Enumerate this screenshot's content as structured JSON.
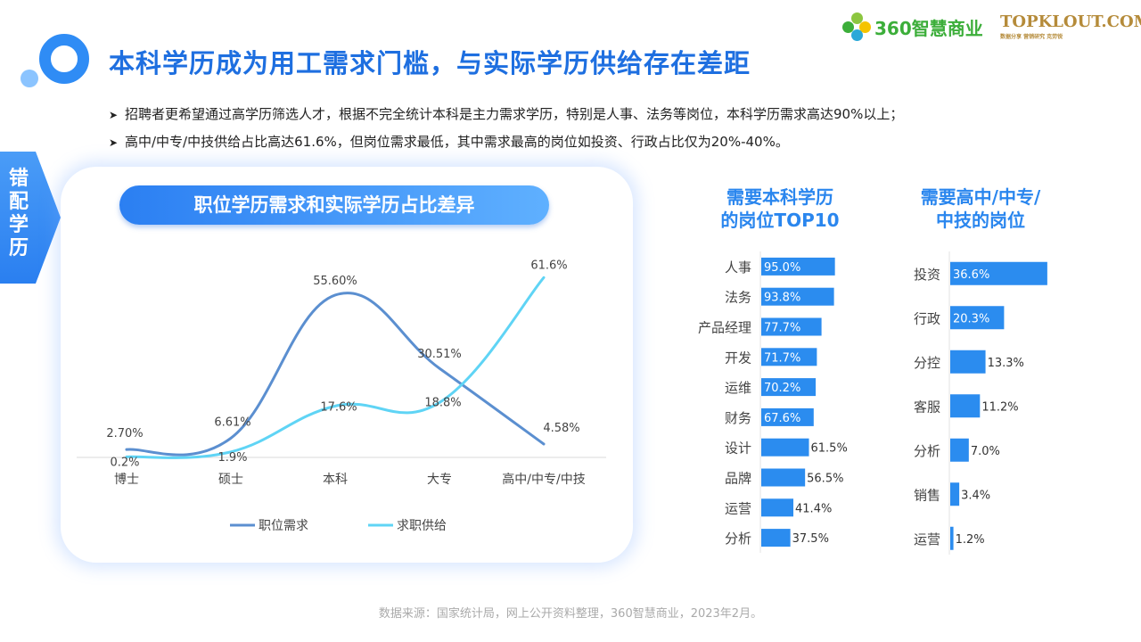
{
  "page": {
    "title": "本科学历成为用工需求门槛，与实际学历供给存在差距",
    "bullets": [
      "招聘者更希望通过高学历筛选人才，根据不完全统计本科是主力需求学历，特别是人事、法务等岗位，本科学历需求高达90%以上；",
      "高中/中专/中技供给占比高达61.6%，但岗位需求最低，其中需求最高的岗位如投资、行政占比仅为20%-40%。"
    ],
    "side_tab": [
      "错",
      "配",
      "学",
      "历"
    ],
    "brand_360": "360智慧商业",
    "brand_topklout": "TOPKLOUT.COM",
    "brand_topklout_sub": "数据分享 营销研究 克劳锐",
    "source": "数据来源：国家统计局，网上公开资料整理，360智慧商业，2023年2月。",
    "colors": {
      "accent": "#1e6fe0",
      "demand": "#5b8fd0",
      "supply": "#5fd4f5",
      "bar": "#2b8cef"
    }
  },
  "chart_data": [
    {
      "type": "line",
      "title": "职位学历需求和实际学历占比差异",
      "categories": [
        "博士",
        "硕士",
        "本科",
        "大专",
        "高中/中专/中技"
      ],
      "series": [
        {
          "name": "职位需求",
          "values": [
            2.7,
            6.61,
            55.6,
            30.51,
            4.58
          ],
          "labels": [
            "2.70%",
            "6.61%",
            "55.60%",
            "30.51%",
            "4.58%"
          ],
          "color": "#5b8fd0"
        },
        {
          "name": "求职供给",
          "values": [
            0.2,
            1.9,
            17.6,
            18.8,
            61.6
          ],
          "labels": [
            "0.2%",
            "1.9%",
            "17.6%",
            "18.8%",
            "61.6%"
          ],
          "color": "#5fd4f5"
        }
      ],
      "ylim": [
        0,
        62
      ],
      "legend": "bottom"
    },
    {
      "type": "bar",
      "orientation": "horizontal",
      "title": "需要本科学历的岗位TOP10",
      "title_lines": [
        "需要本科学历",
        "的岗位TOP10"
      ],
      "categories": [
        "人事",
        "法务",
        "产品经理",
        "开发",
        "运维",
        "财务",
        "设计",
        "品牌",
        "运营",
        "分析"
      ],
      "values": [
        95.0,
        93.8,
        77.7,
        71.7,
        70.2,
        67.6,
        61.5,
        56.5,
        41.4,
        37.5
      ],
      "labels": [
        "95.0%",
        "93.8%",
        "77.7%",
        "71.7%",
        "70.2%",
        "67.6%",
        "61.5%",
        "56.5%",
        "41.4%",
        "37.5%"
      ],
      "xlim": [
        0,
        100
      ]
    },
    {
      "type": "bar",
      "orientation": "horizontal",
      "title": "需要高中/中专/中技的岗位",
      "title_lines": [
        "需要高中/中专/",
        "中技的岗位"
      ],
      "categories": [
        "投资",
        "行政",
        "分控",
        "客服",
        "分析",
        "销售",
        "运营"
      ],
      "values": [
        36.6,
        20.3,
        13.3,
        11.2,
        7.0,
        3.4,
        1.2
      ],
      "labels": [
        "36.6%",
        "20.3%",
        "13.3%",
        "11.2%",
        "7.0%",
        "3.4%",
        "1.2%"
      ],
      "xlim": [
        0,
        40
      ]
    }
  ]
}
